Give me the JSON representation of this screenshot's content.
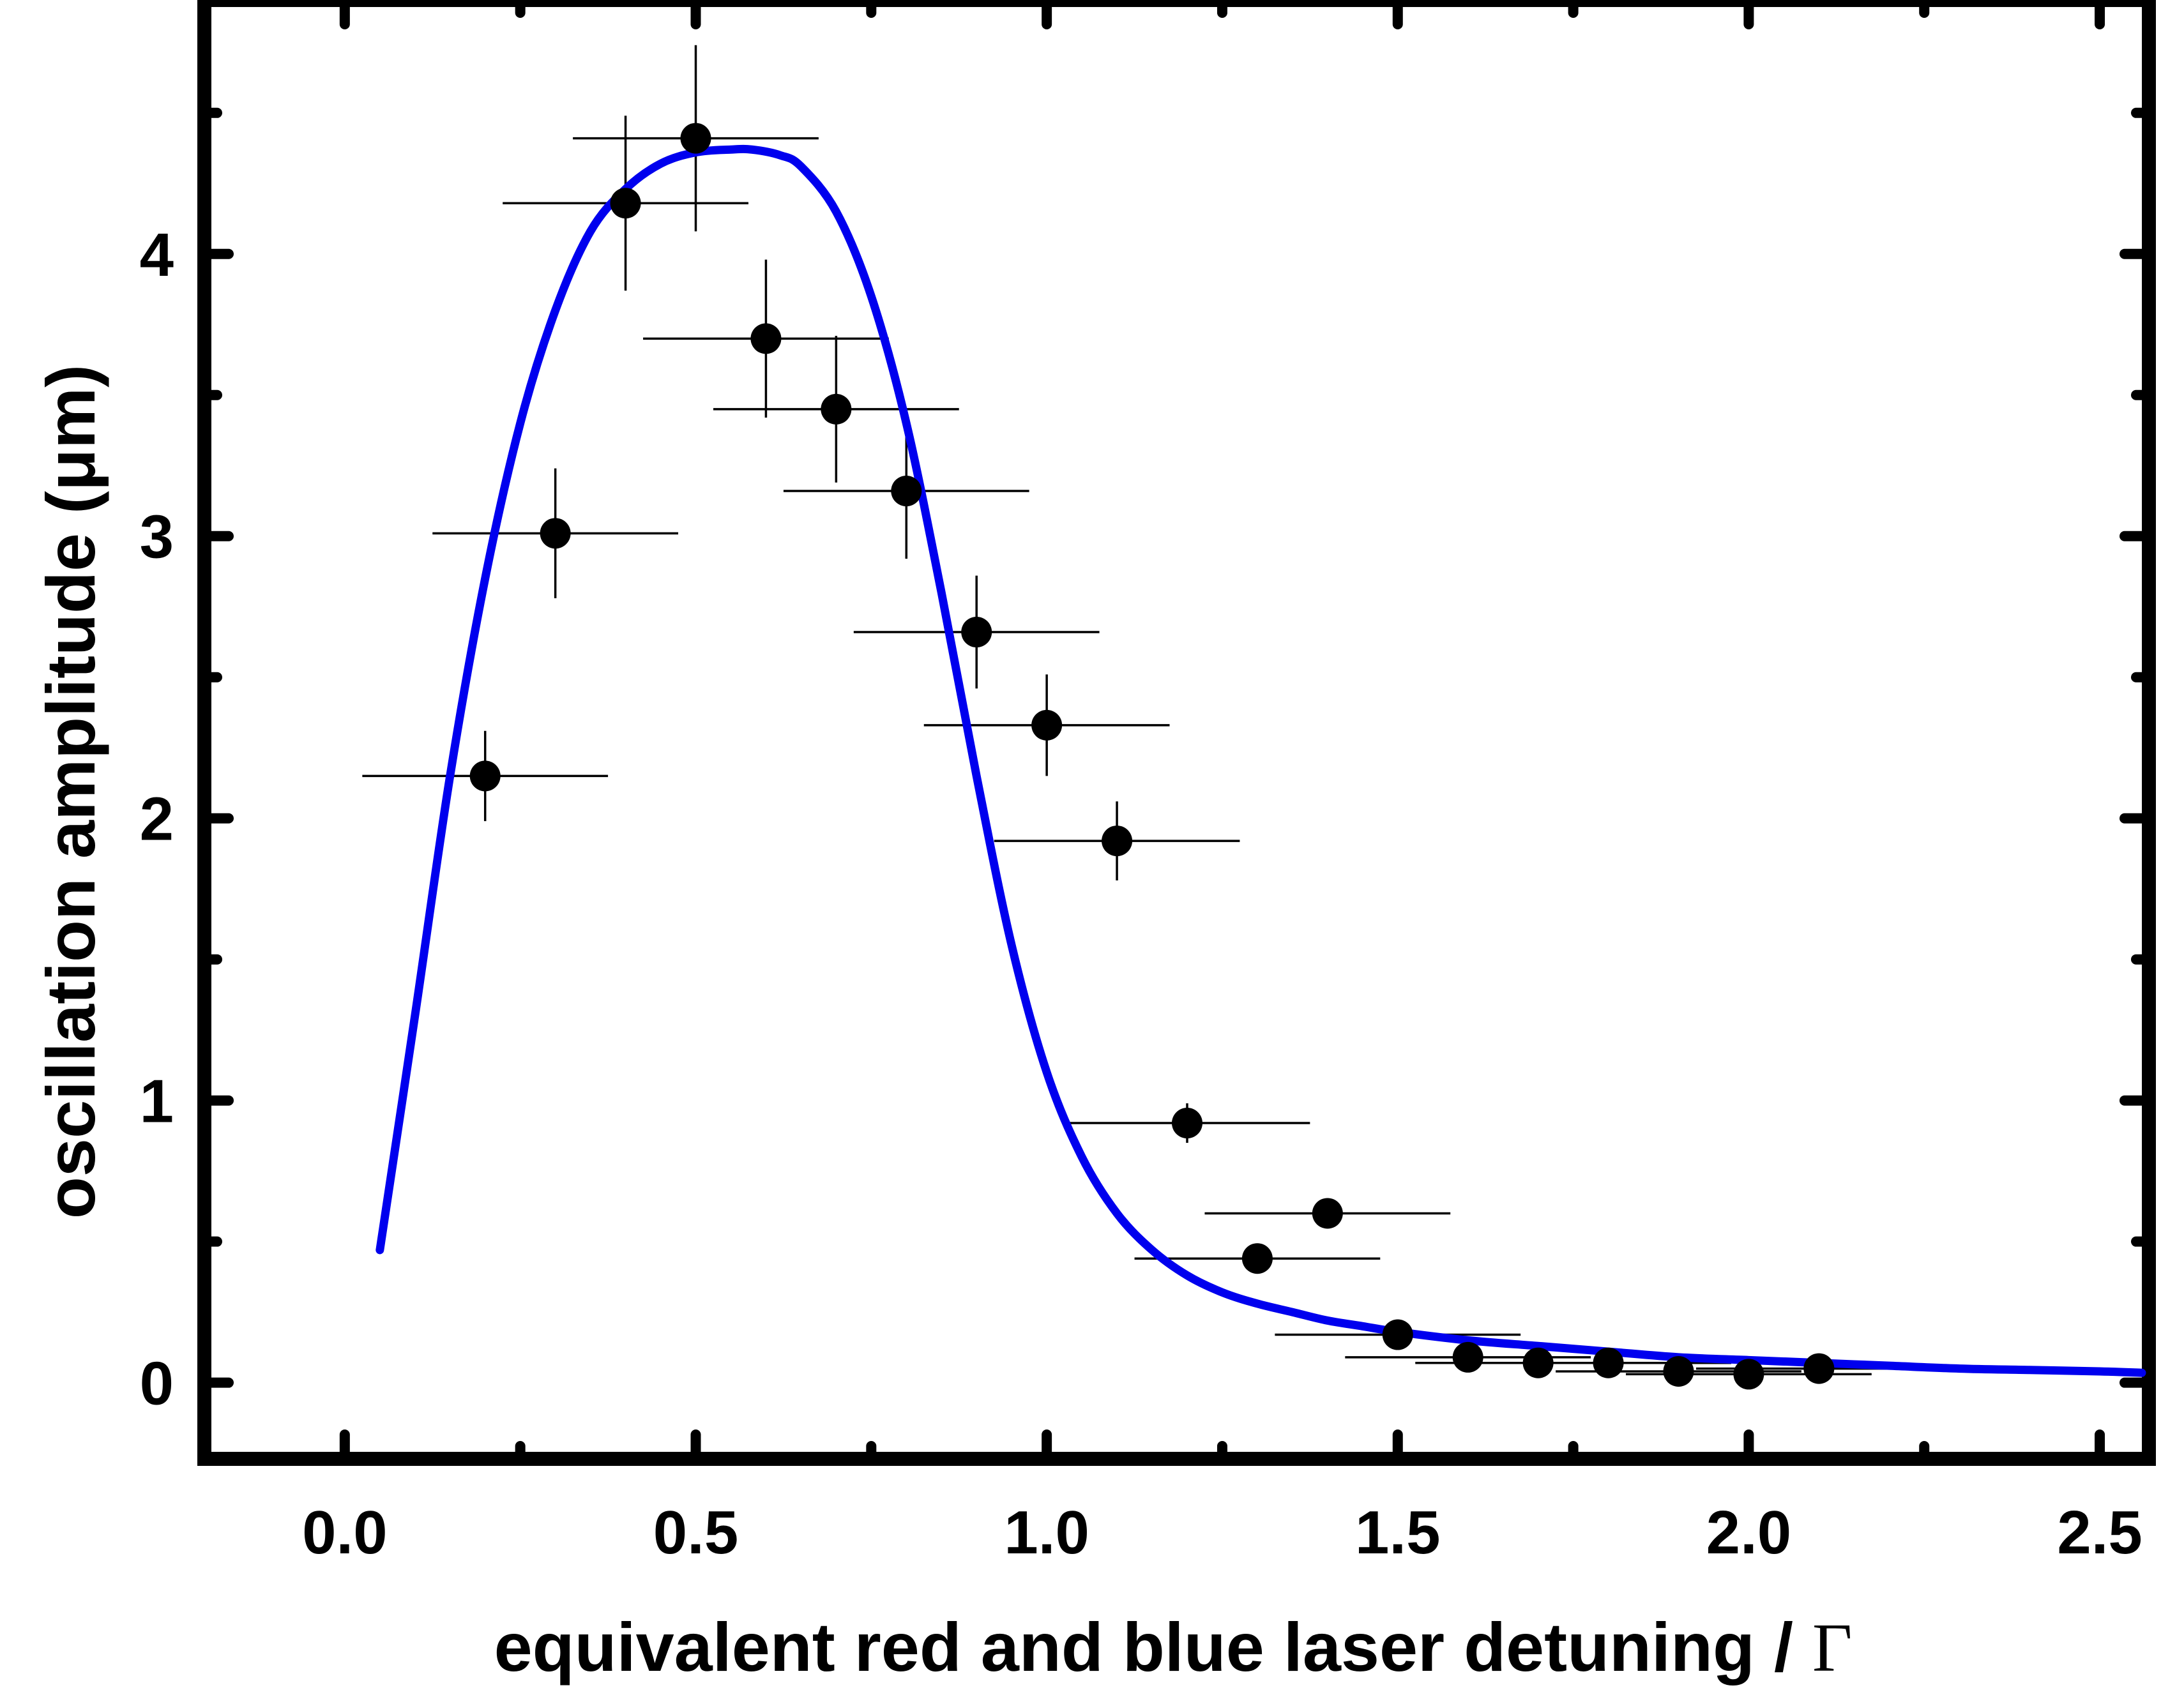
{
  "chart_data": {
    "type": "scatter",
    "xlabel": "equivalent red and blue laser detuning / ",
    "xlabel_symbol": "Γ",
    "ylabel": "oscillation amplitude (μm)",
    "xlim": [
      -0.2,
      2.57
    ],
    "ylim": [
      -0.27,
      4.9
    ],
    "x_ticks": [
      "0.0",
      "0.5",
      "1.0",
      "1.5",
      "2.0",
      "2.5"
    ],
    "y_ticks": [
      "0",
      "1",
      "2",
      "3",
      "4"
    ],
    "grid": false,
    "legend": "none",
    "series": [
      {
        "kind": "points_with_errorbars",
        "color": "#000000",
        "points": [
          {
            "x": 0.2,
            "y": 2.15,
            "xerr": 0.175,
            "yerr": 0.16
          },
          {
            "x": 0.3,
            "y": 3.01,
            "xerr": 0.175,
            "yerr": 0.23
          },
          {
            "x": 0.4,
            "y": 4.18,
            "xerr": 0.175,
            "yerr": 0.31
          },
          {
            "x": 0.5,
            "y": 4.41,
            "xerr": 0.175,
            "yerr": 0.33
          },
          {
            "x": 0.6,
            "y": 3.7,
            "xerr": 0.175,
            "yerr": 0.28
          },
          {
            "x": 0.7,
            "y": 3.45,
            "xerr": 0.175,
            "yerr": 0.26
          },
          {
            "x": 0.8,
            "y": 3.16,
            "xerr": 0.175,
            "yerr": 0.24
          },
          {
            "x": 0.9,
            "y": 2.66,
            "xerr": 0.175,
            "yerr": 0.2
          },
          {
            "x": 1.0,
            "y": 2.33,
            "xerr": 0.175,
            "yerr": 0.18
          },
          {
            "x": 1.1,
            "y": 1.92,
            "xerr": 0.175,
            "yerr": 0.14
          },
          {
            "x": 1.2,
            "y": 0.92,
            "xerr": 0.175,
            "yerr": 0.07
          },
          {
            "x": 1.3,
            "y": 0.44,
            "xerr": 0.175,
            "yerr": 0.03
          },
          {
            "x": 1.4,
            "y": 0.6,
            "xerr": 0.175,
            "yerr": 0.04
          },
          {
            "x": 1.5,
            "y": 0.17,
            "xerr": 0.175,
            "yerr": 0.02
          },
          {
            "x": 1.6,
            "y": 0.09,
            "xerr": 0.175,
            "yerr": 0.01
          },
          {
            "x": 1.7,
            "y": 0.07,
            "xerr": 0.175,
            "yerr": 0.01
          },
          {
            "x": 1.8,
            "y": 0.07,
            "xerr": 0.175,
            "yerr": 0.01
          },
          {
            "x": 1.9,
            "y": 0.04,
            "xerr": 0.175,
            "yerr": 0.01
          },
          {
            "x": 2.0,
            "y": 0.03,
            "xerr": 0.175,
            "yerr": 0.01
          },
          {
            "x": 2.1,
            "y": 0.05,
            "xerr": 0.175,
            "yerr": 0.01
          }
        ]
      },
      {
        "kind": "fit_curve",
        "color": "#0000ee",
        "x": [
          0.05,
          0.1,
          0.15,
          0.2,
          0.25,
          0.3,
          0.35,
          0.4,
          0.45,
          0.5,
          0.55,
          0.58,
          0.62,
          0.65,
          0.7,
          0.75,
          0.8,
          0.85,
          0.9,
          0.95,
          1.0,
          1.05,
          1.1,
          1.15,
          1.2,
          1.25,
          1.3,
          1.35,
          1.4,
          1.45,
          1.5,
          1.6,
          1.7,
          1.8,
          1.9,
          2.0,
          2.1,
          2.2,
          2.3,
          2.4,
          2.5,
          2.56
        ],
        "y": [
          0.47,
          1.3,
          2.15,
          2.85,
          3.4,
          3.8,
          4.08,
          4.23,
          4.32,
          4.36,
          4.37,
          4.37,
          4.35,
          4.31,
          4.15,
          3.85,
          3.4,
          2.8,
          2.15,
          1.55,
          1.1,
          0.8,
          0.6,
          0.47,
          0.38,
          0.32,
          0.28,
          0.25,
          0.22,
          0.2,
          0.18,
          0.15,
          0.13,
          0.11,
          0.09,
          0.08,
          0.07,
          0.06,
          0.05,
          0.045,
          0.04,
          0.035
        ]
      }
    ]
  }
}
